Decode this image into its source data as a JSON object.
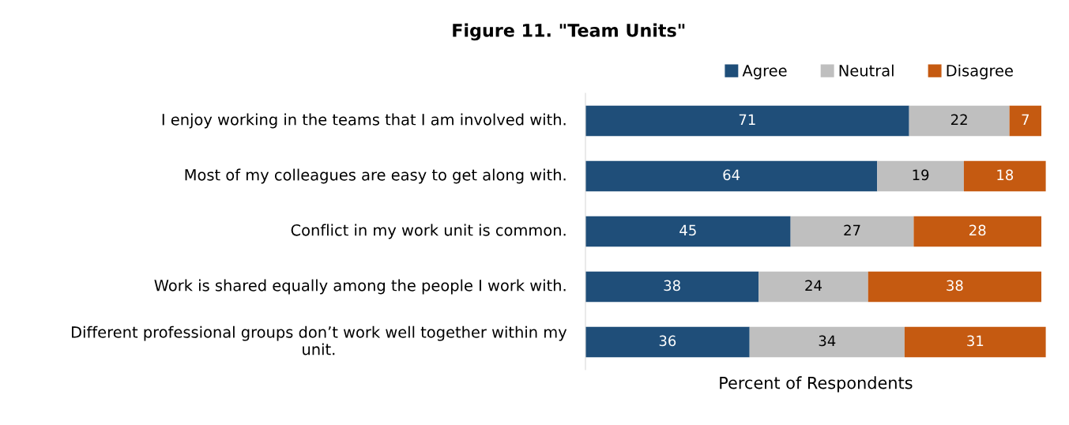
{
  "chart_data": {
    "type": "bar",
    "title": "Figure 11. \"Team Units\"",
    "xlabel": "Percent of Respondents",
    "orientation": "horizontal",
    "stacked": true,
    "data_labels": true,
    "legend": "top right",
    "grid": false,
    "categories": [
      "I enjoy working in the teams that I am involved with.",
      "Most of my colleagues are easy to get along with.",
      "Conflict in my work unit is common.",
      "Work is shared equally among the people I work with.",
      "Different professional groups don’t work well together within my unit."
    ],
    "xlim": [
      0,
      101
    ],
    "series": [
      {
        "name": "Agree",
        "color": "#1f4e79",
        "values": [
          71,
          64,
          45,
          38,
          36
        ]
      },
      {
        "name": "Neutral",
        "color": "#bfbfbf",
        "values": [
          22,
          19,
          27,
          24,
          34
        ]
      },
      {
        "name": "Disagree",
        "color": "#c55a11",
        "values": [
          7,
          18,
          28,
          38,
          31
        ]
      }
    ]
  }
}
